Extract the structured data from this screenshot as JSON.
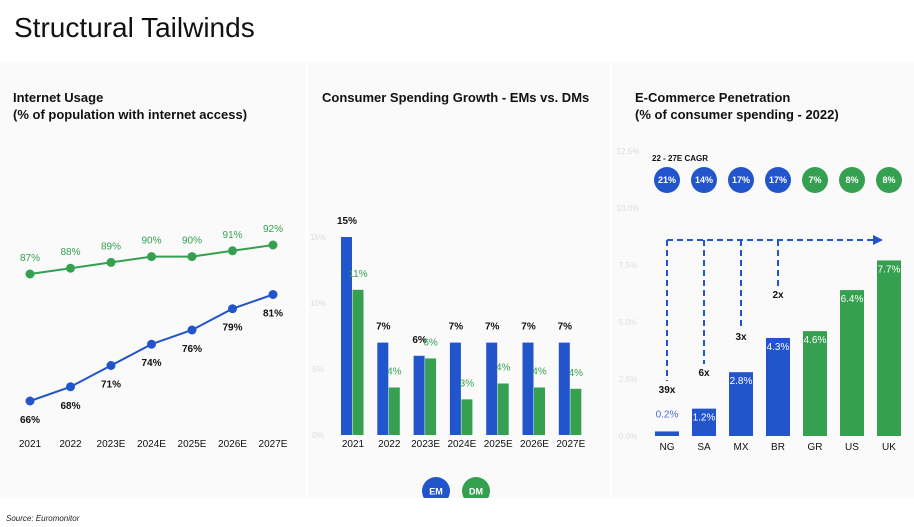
{
  "page": {
    "title": "Structural Tailwinds",
    "source": "Source: Euromonitor"
  },
  "colors": {
    "em": "#2255cc",
    "dm": "#35a04f"
  },
  "chart_data": [
    {
      "type": "line",
      "title": "Internet Usage",
      "subtitle": "(% of population with internet access)",
      "categories": [
        "2021",
        "2022",
        "2023E",
        "2024E",
        "2025E",
        "2026E",
        "2027E"
      ],
      "series": [
        {
          "values": [
            87,
            88,
            89,
            90,
            90,
            91,
            92
          ],
          "labels": [
            "87%",
            "88%",
            "89%",
            "90%",
            "90%",
            "91%",
            "92%"
          ],
          "color": "#35a04f"
        },
        {
          "values": [
            66,
            68,
            71,
            74,
            76,
            79,
            81
          ],
          "labels": [
            "66%",
            "68%",
            "71%",
            "74%",
            "76%",
            "79%",
            "81%"
          ],
          "color": "#2255cc"
        }
      ]
    },
    {
      "type": "bar",
      "title": "Consumer Spending Growth - EMs vs. DMs",
      "categories": [
        "2021",
        "2022",
        "2023E",
        "2024E",
        "2025E",
        "2026E",
        "2027E"
      ],
      "yticks": [
        "15%",
        "10%",
        "5%",
        "0%"
      ],
      "series": [
        {
          "name": "EM",
          "values": [
            15,
            7,
            6,
            7,
            7,
            7,
            7
          ],
          "labels": [
            "15%",
            "7%",
            "6%",
            "7%",
            "7%",
            "7%",
            "7%"
          ],
          "color": "#2255cc"
        },
        {
          "name": "DM",
          "values": [
            11,
            3.6,
            5.8,
            2.7,
            3.9,
            3.6,
            3.5
          ],
          "labels": [
            "11%",
            "4%",
            "6%",
            "3%",
            "4%",
            "4%",
            "4%"
          ],
          "color": "#35a04f"
        }
      ],
      "legend": [
        "EM",
        "DM"
      ]
    },
    {
      "type": "bar",
      "title": "E-Commerce Penetration",
      "subtitle": "(% of consumer spending - 2022)",
      "categories": [
        "NG",
        "SA",
        "MX",
        "BR",
        "GR",
        "US",
        "UK"
      ],
      "values": [
        0.2,
        1.2,
        2.8,
        4.3,
        4.6,
        6.4,
        7.7
      ],
      "labels": [
        "0.2%",
        "1.2%",
        "2.8%",
        "4.3%",
        "4.6%",
        "6.4%",
        "7.7%"
      ],
      "bar_colors": [
        "#2255cc",
        "#2255cc",
        "#2255cc",
        "#2255cc",
        "#35a04f",
        "#35a04f",
        "#35a04f"
      ],
      "yticks": [
        "12.5%",
        "10.0%",
        "7.5%",
        "5.0%",
        "2.5%",
        "0.0%"
      ],
      "ylim": [
        0,
        12.5
      ],
      "cagr_title": "22 - 27E CAGR",
      "cagr": [
        "21%",
        "14%",
        "17%",
        "17%",
        "7%",
        "8%",
        "8%"
      ],
      "multipliers": [
        "39x",
        "6x",
        "3x",
        "2x"
      ]
    }
  ]
}
